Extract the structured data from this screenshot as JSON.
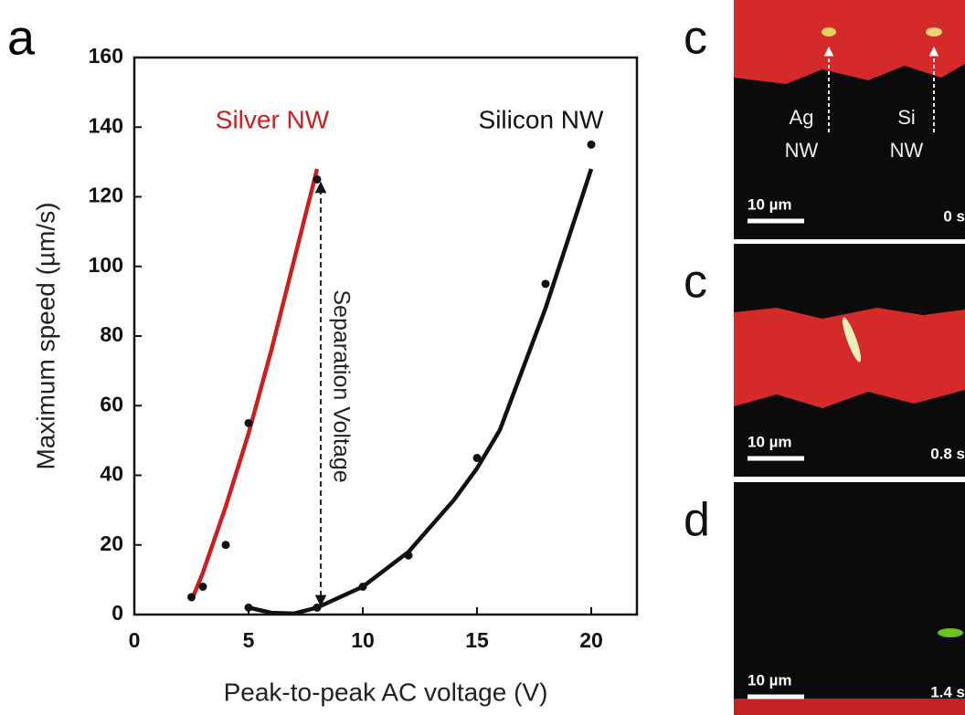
{
  "chart_data": {
    "type": "scatter",
    "panel_label": "a",
    "xlabel": "Peak-to-peak AC voltage (V)",
    "ylabel": "Maximum speed (µm/s)",
    "xlim": [
      0,
      22
    ],
    "ylim": [
      0,
      160
    ],
    "xticks": [
      0,
      5,
      10,
      15,
      20
    ],
    "yticks": [
      0,
      20,
      40,
      60,
      80,
      100,
      120,
      140,
      160
    ],
    "series": [
      {
        "name": "Silver NW",
        "color": "#cc1f1f",
        "mode": "line",
        "x": [
          2.5,
          3,
          4,
          5,
          6,
          7,
          8
        ],
        "values": [
          4,
          12,
          31,
          52,
          76,
          102,
          128
        ]
      },
      {
        "name": "Silicon NW",
        "color": "#111111",
        "mode": "line",
        "x": [
          5,
          6,
          7,
          8,
          10,
          12,
          14,
          15,
          16,
          18,
          20
        ],
        "values": [
          2,
          0.5,
          0.3,
          2,
          8,
          18,
          33,
          42,
          53,
          88,
          128
        ]
      },
      {
        "color": "#111111",
        "mode": "markers",
        "x": [
          2.5,
          3,
          4,
          5,
          8
        ],
        "values": [
          5,
          8,
          20,
          55,
          125
        ]
      },
      {
        "color": "#111111",
        "mode": "markers",
        "x": [
          5,
          8,
          10,
          12,
          15,
          18,
          20
        ],
        "values": [
          2,
          2,
          8,
          17,
          45,
          95,
          135
        ]
      }
    ],
    "annotation": "Separation Voltage"
  },
  "panels": [
    {
      "letter": "c",
      "labels": [
        [
          "Ag",
          "NW"
        ],
        [
          "Si",
          "NW"
        ]
      ],
      "scale": "10 µm",
      "time": "0 s"
    },
    {
      "letter": "c",
      "scale": "10 µm",
      "time": "0.8 s"
    },
    {
      "letter": "d",
      "scale": "10 µm",
      "time": "1.4 s"
    }
  ]
}
